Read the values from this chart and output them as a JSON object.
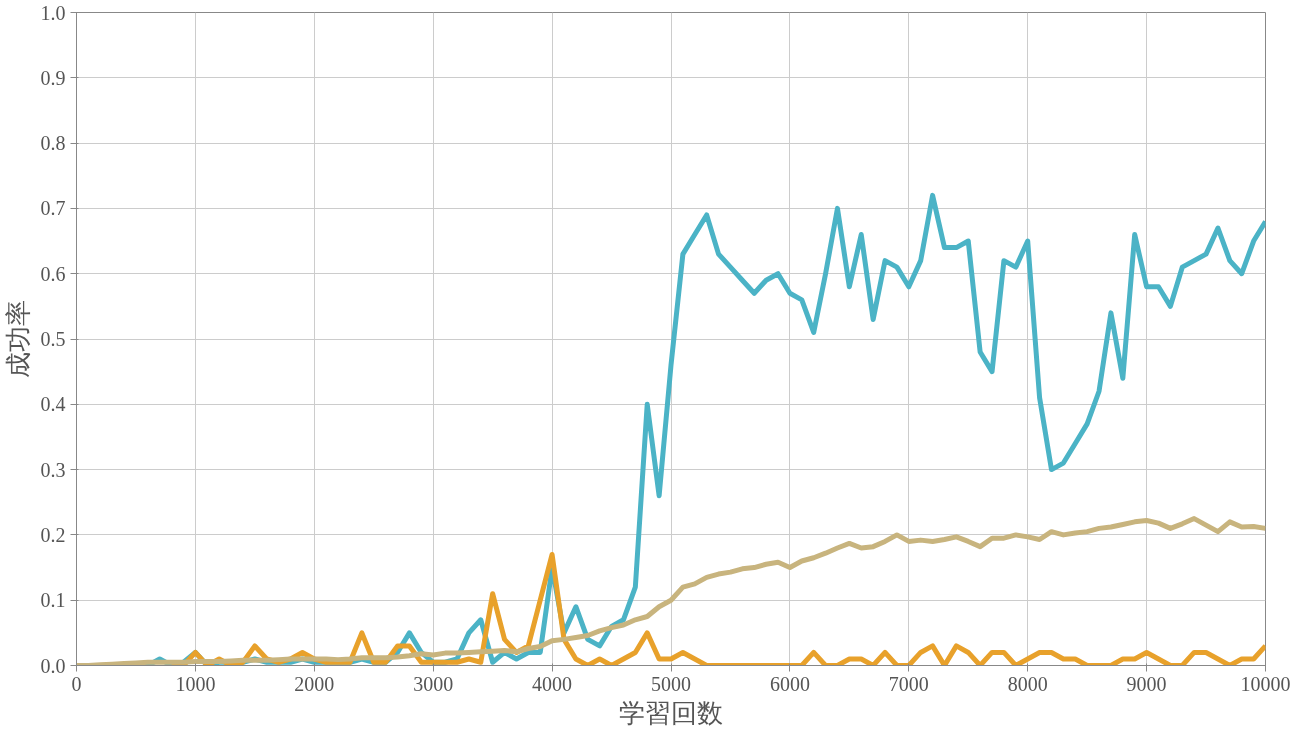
{
  "chart_data": {
    "type": "line",
    "xlabel": "学習回数",
    "ylabel": "成功率",
    "x": [
      0,
      100,
      200,
      300,
      400,
      500,
      600,
      700,
      800,
      900,
      1000,
      1100,
      1200,
      1300,
      1400,
      1500,
      1600,
      1700,
      1800,
      1900,
      2000,
      2100,
      2200,
      2300,
      2400,
      2500,
      2600,
      2700,
      2800,
      2900,
      3000,
      3100,
      3200,
      3300,
      3400,
      3500,
      3600,
      3700,
      3800,
      3900,
      4000,
      4100,
      4200,
      4300,
      4400,
      4500,
      4600,
      4700,
      4800,
      4900,
      5000,
      5100,
      5200,
      5300,
      5400,
      5500,
      5600,
      5700,
      5800,
      5900,
      6000,
      6100,
      6200,
      6300,
      6400,
      6500,
      6600,
      6700,
      6800,
      6900,
      7000,
      7100,
      7200,
      7300,
      7400,
      7500,
      7600,
      7700,
      7800,
      7900,
      8000,
      8100,
      8200,
      8300,
      8400,
      8500,
      8600,
      8700,
      8800,
      8900,
      9000,
      9100,
      9200,
      9300,
      9400,
      9500,
      9600,
      9700,
      9800,
      9900,
      10000
    ],
    "series": [
      {
        "color": "#4bb3c6",
        "values": [
          null,
          null,
          null,
          null,
          null,
          0,
          0,
          0.01,
          0,
          0.005,
          0.02,
          0,
          0.005,
          0.005,
          0.005,
          0.01,
          0.005,
          0.005,
          0.005,
          0.01,
          0.005,
          0.005,
          0.005,
          0.005,
          0.01,
          0.005,
          0.005,
          0.02,
          0.05,
          0.02,
          0.005,
          0.005,
          0.01,
          0.05,
          0.07,
          0.005,
          0.02,
          0.01,
          0.02,
          0.02,
          0.15,
          0.05,
          0.09,
          0.04,
          0.03,
          0.06,
          0.07,
          0.12,
          0.4,
          0.26,
          0.46,
          0.63,
          0.66,
          0.69,
          0.63,
          0.61,
          0.59,
          0.57,
          0.59,
          0.6,
          0.57,
          0.56,
          0.51,
          0.6,
          0.7,
          0.58,
          0.66,
          0.53,
          0.62,
          0.61,
          0.58,
          0.62,
          0.72,
          0.64,
          0.64,
          0.65,
          0.48,
          0.45,
          0.62,
          0.61,
          0.65,
          0.41,
          0.3,
          0.31,
          0.34,
          0.37,
          0.42,
          0.54,
          0.44,
          0.66,
          0.58,
          0.58,
          0.55,
          0.61,
          0.62,
          0.63,
          0.67,
          0.62,
          0.6,
          0.65,
          0.68
        ]
      },
      {
        "color": "#e8a12b",
        "values": [
          null,
          null,
          null,
          null,
          null,
          null,
          null,
          null,
          0,
          0,
          0.02,
          0,
          0.01,
          0,
          0.005,
          0.03,
          0.01,
          0.005,
          0.01,
          0.02,
          0.01,
          0.005,
          0.005,
          0.005,
          0.05,
          0.005,
          0.005,
          0.03,
          0.03,
          0.005,
          0.005,
          0.005,
          0.005,
          0.01,
          0.005,
          0.11,
          0.04,
          0.02,
          0.03,
          0.1,
          0.17,
          0.04,
          0.01,
          0,
          0.01,
          0,
          0.01,
          0.02,
          0.05,
          0.01,
          0.01,
          0.02,
          0.01,
          0,
          0,
          0,
          0,
          0,
          0,
          0,
          0,
          0,
          0.02,
          0,
          0,
          0.01,
          0.01,
          0,
          0.02,
          0,
          0,
          0.02,
          0.03,
          0,
          0.03,
          0.02,
          0,
          0.02,
          0.02,
          0,
          0.01,
          0.02,
          0.02,
          0.01,
          0.01,
          0,
          0,
          0,
          0.01,
          0.01,
          0.02,
          0.01,
          0,
          0,
          0.02,
          0.02,
          0.01,
          0,
          0.01,
          0.01,
          0.03
        ]
      },
      {
        "color": "#c8b47e",
        "values": [
          0,
          0,
          0.001,
          0.002,
          0.003,
          0.004,
          0.005,
          0.005,
          0.005,
          0.005,
          0.006,
          0.006,
          0.006,
          0.007,
          0.008,
          0.008,
          0.008,
          0.009,
          0.01,
          0.01,
          0.01,
          0.01,
          0.009,
          0.01,
          0.012,
          0.012,
          0.012,
          0.013,
          0.015,
          0.018,
          0.016,
          0.019,
          0.019,
          0.02,
          0.021,
          0.022,
          0.023,
          0.021,
          0.026,
          0.029,
          0.038,
          0.04,
          0.043,
          0.046,
          0.053,
          0.058,
          0.062,
          0.07,
          0.075,
          0.09,
          0.1,
          0.12,
          0.125,
          0.135,
          0.14,
          0.143,
          0.148,
          0.15,
          0.155,
          0.158,
          0.15,
          0.16,
          0.165,
          0.172,
          0.18,
          0.187,
          0.18,
          0.182,
          0.19,
          0.2,
          0.19,
          0.192,
          0.19,
          0.193,
          0.197,
          0.19,
          0.182,
          0.195,
          0.195,
          0.2,
          0.197,
          0.193,
          0.205,
          0.2,
          0.203,
          0.205,
          0.21,
          0.212,
          0.216,
          0.22,
          0.222,
          0.218,
          0.21,
          0.217,
          0.225,
          0.215,
          0.205,
          0.22,
          0.212,
          0.213,
          0.21
        ]
      }
    ],
    "xlim": [
      0,
      10000
    ],
    "xticks": [
      0,
      1000,
      2000,
      3000,
      4000,
      5000,
      6000,
      7000,
      8000,
      9000,
      10000
    ],
    "ylim": [
      0,
      1
    ],
    "yticks": [
      {
        "value": 0,
        "label": "0.0"
      },
      0.1,
      0.2,
      0.3,
      0.4,
      0.5,
      0.6,
      0.7,
      0.8,
      0.9,
      {
        "value": 1,
        "label": "1.0"
      }
    ],
    "grid": true,
    "marker": "none",
    "line_style": "solid"
  }
}
